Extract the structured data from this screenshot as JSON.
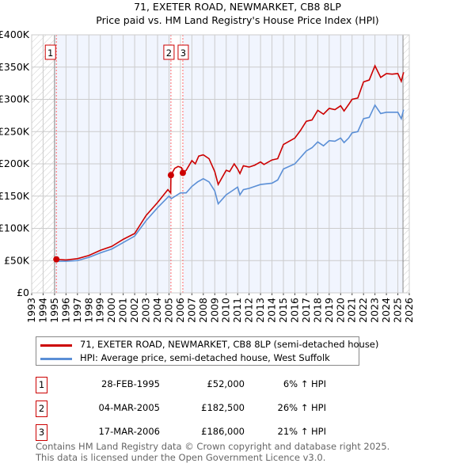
{
  "chart_data": {
    "type": "line",
    "title": "71, EXETER ROAD, NEWMARKET, CB8 8LP",
    "subtitle": "Price paid vs. HM Land Registry's House Price Index (HPI)",
    "xlim": [
      1993,
      2026
    ],
    "ylim": [
      0,
      400000
    ],
    "y_ticks": [
      {
        "v": 0,
        "l": "£0"
      },
      {
        "v": 50000,
        "l": "£50K"
      },
      {
        "v": 100000,
        "l": "£100K"
      },
      {
        "v": 150000,
        "l": "£150K"
      },
      {
        "v": 200000,
        "l": "£200K"
      },
      {
        "v": 250000,
        "l": "£250K"
      },
      {
        "v": 300000,
        "l": "£300K"
      },
      {
        "v": 350000,
        "l": "£350K"
      },
      {
        "v": 400000,
        "l": "£400K"
      }
    ],
    "x_ticks": [
      "1993",
      "1994",
      "1995",
      "1996",
      "1997",
      "1998",
      "1999",
      "2000",
      "2001",
      "2002",
      "2003",
      "2004",
      "2005",
      "2006",
      "2007",
      "2008",
      "2009",
      "2010",
      "2011",
      "2012",
      "2013",
      "2014",
      "2015",
      "2016",
      "2017",
      "2018",
      "2019",
      "2020",
      "2021",
      "2022",
      "2023",
      "2024",
      "2025",
      "2026"
    ],
    "grid": true,
    "hatched_before": 1995.0,
    "hatched_after": 2025.45,
    "series": [
      {
        "name": "71, EXETER ROAD, NEWMARKET, CB8 8LP (semi-detached house)",
        "color": "#cc0000",
        "x": [
          1995.16,
          1996,
          1997,
          1998,
          1999,
          2000,
          2001,
          2002,
          2003,
          2004,
          2004.9,
          2005.15,
          2005.17,
          2005.5,
          2005.8,
          2006.1,
          2006.21,
          2006.5,
          2007,
          2007.3,
          2007.6,
          2008,
          2008.5,
          2009,
          2009.3,
          2010,
          2010.3,
          2010.7,
          2011,
          2011.2,
          2011.5,
          2012,
          2012.5,
          2013,
          2013.3,
          2014,
          2014.5,
          2015,
          2016,
          2016.5,
          2017,
          2017.5,
          2018,
          2018.5,
          2019,
          2019.5,
          2020,
          2020.3,
          2020.7,
          2021,
          2021.5,
          2022,
          2022.5,
          2023,
          2023.5,
          2024,
          2024.5,
          2025,
          2025.3,
          2025.5
        ],
        "y": [
          52000,
          51000,
          53000,
          58000,
          66000,
          72000,
          83000,
          92000,
          120000,
          140000,
          160000,
          155000,
          182500,
          193000,
          196000,
          194000,
          186000,
          190000,
          205000,
          200000,
          212000,
          214000,
          208000,
          188000,
          168000,
          190000,
          188000,
          200000,
          192000,
          185000,
          197000,
          195000,
          198000,
          203000,
          199000,
          206000,
          208000,
          230000,
          240000,
          252000,
          266000,
          268000,
          283000,
          277000,
          286000,
          284000,
          290000,
          282000,
          292000,
          300000,
          302000,
          327000,
          330000,
          352000,
          334000,
          340000,
          339000,
          340000,
          328000,
          342000
        ]
      },
      {
        "name": "HPI: Average price, semi-detached house, West Suffolk",
        "color": "#5b8fd6",
        "x": [
          1995.16,
          1996,
          1997,
          1998,
          1999,
          2000,
          2001,
          2002,
          2003,
          2004,
          2005,
          2005.2,
          2006,
          2006.5,
          2007,
          2007.5,
          2008,
          2008.5,
          2009,
          2009.3,
          2010,
          2010.5,
          2011,
          2011.2,
          2011.5,
          2012,
          2012.5,
          2013,
          2014,
          2014.5,
          2015,
          2016,
          2016.5,
          2017,
          2017.5,
          2018,
          2018.5,
          2019,
          2019.5,
          2020,
          2020.3,
          2020.7,
          2021,
          2021.5,
          2022,
          2022.5,
          2023,
          2023.5,
          2024,
          2024.5,
          2025,
          2025.3,
          2025.5
        ],
        "y": [
          49000,
          49000,
          50000,
          55000,
          62000,
          68000,
          78000,
          88000,
          112000,
          132000,
          150000,
          146000,
          155000,
          155000,
          165000,
          172000,
          177000,
          172000,
          158000,
          138000,
          152000,
          158000,
          164000,
          152000,
          160000,
          162000,
          165000,
          168000,
          170000,
          175000,
          192000,
          200000,
          210000,
          220000,
          225000,
          234000,
          228000,
          236000,
          235000,
          240000,
          233000,
          240000,
          248000,
          250000,
          270000,
          272000,
          291000,
          278000,
          280000,
          280000,
          280000,
          270000,
          284000
        ]
      }
    ],
    "sales": [
      {
        "n": "1",
        "x": 1995.16,
        "y": 52000,
        "date": "28-FEB-1995",
        "price": "£52,000",
        "hpi": "6% ↑ HPI"
      },
      {
        "n": "2",
        "x": 2005.17,
        "y": 182500,
        "date": "04-MAR-2005",
        "price": "£182,500",
        "hpi": "26% ↑ HPI"
      },
      {
        "n": "3",
        "x": 2006.21,
        "y": 186000,
        "date": "17-MAR-2006",
        "price": "£186,000",
        "hpi": "21% ↑ HPI"
      }
    ]
  },
  "footer": [
    "Contains HM Land Registry data © Crown copyright and database right 2025.",
    "This data is licensed under the Open Government Licence v3.0."
  ]
}
